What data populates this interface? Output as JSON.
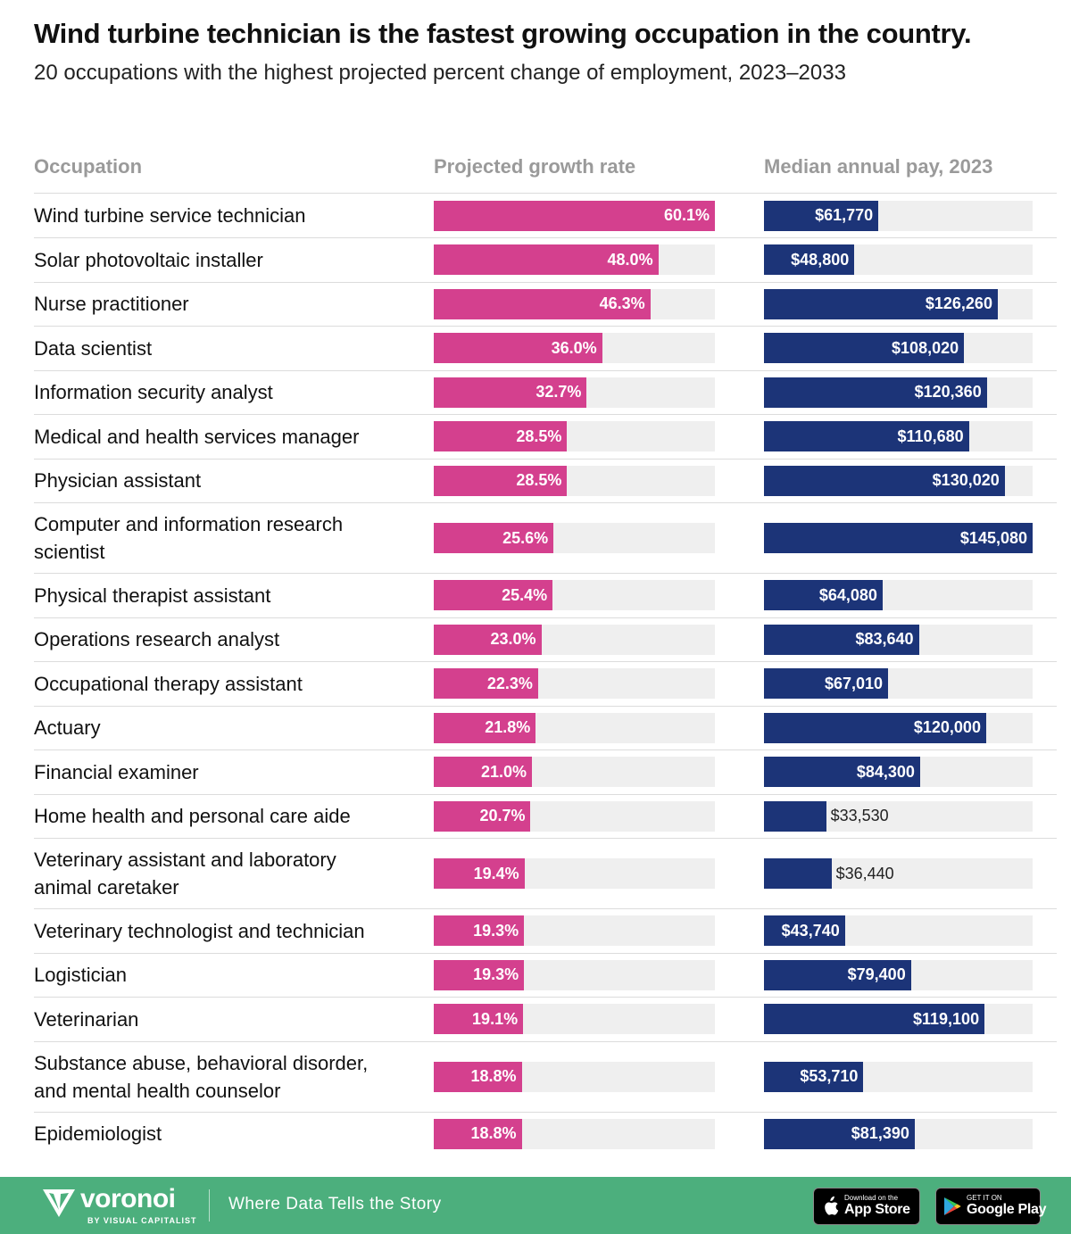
{
  "title": "Wind turbine technician is the fastest growing occupation in the country.",
  "subtitle": "20 occupations with the highest projected percent change of employment, 2023–2033",
  "headers": {
    "occupation": "Occupation",
    "growth": "Projected growth rate",
    "pay": "Median annual pay, 2023"
  },
  "colors": {
    "growth_bar": "#d4408e",
    "pay_bar": "#1c3478",
    "track": "#efefef",
    "footer": "#4caf7d"
  },
  "chart_data": [
    {
      "type": "bar",
      "orientation": "horizontal",
      "title": "Projected growth rate",
      "unit": "%",
      "xlim": [
        0,
        60.1
      ],
      "categories": [
        "Wind turbine service technician",
        "Solar photovoltaic installer",
        "Nurse practitioner",
        "Data scientist",
        "Information security analyst",
        "Medical and health services manager",
        "Physician assistant",
        "Computer and information research scientist",
        "Physical therapist assistant",
        "Operations research analyst",
        "Occupational therapy assistant",
        "Actuary",
        "Financial examiner",
        "Home health and personal care aide",
        "Veterinary assistant and laboratory animal caretaker",
        "Veterinary technologist and technician",
        "Logistician",
        "Veterinarian",
        "Substance abuse, behavioral disorder, and mental health counselor",
        "Epidemiologist"
      ],
      "values": [
        60.1,
        48.0,
        46.3,
        36.0,
        32.7,
        28.5,
        28.5,
        25.6,
        25.4,
        23.0,
        22.3,
        21.8,
        21.0,
        20.7,
        19.4,
        19.3,
        19.3,
        19.1,
        18.8,
        18.8
      ],
      "labels": [
        "60.1%",
        "48.0%",
        "46.3%",
        "36.0%",
        "32.7%",
        "28.5%",
        "28.5%",
        "25.6%",
        "25.4%",
        "23.0%",
        "22.3%",
        "21.8%",
        "21.0%",
        "20.7%",
        "19.4%",
        "19.3%",
        "19.3%",
        "19.1%",
        "18.8%",
        "18.8%"
      ]
    },
    {
      "type": "bar",
      "orientation": "horizontal",
      "title": "Median annual pay, 2023",
      "unit": "$",
      "xlim": [
        0,
        145080
      ],
      "categories": [
        "Wind turbine service technician",
        "Solar photovoltaic installer",
        "Nurse practitioner",
        "Data scientist",
        "Information security analyst",
        "Medical and health services manager",
        "Physician assistant",
        "Computer and information research scientist",
        "Physical therapist assistant",
        "Operations research analyst",
        "Occupational therapy assistant",
        "Actuary",
        "Financial examiner",
        "Home health and personal care aide",
        "Veterinary assistant and laboratory animal caretaker",
        "Veterinary technologist and technician",
        "Logistician",
        "Veterinarian",
        "Substance abuse, behavioral disorder, and mental health counselor",
        "Epidemiologist"
      ],
      "values": [
        61770,
        48800,
        126260,
        108020,
        120360,
        110680,
        130020,
        145080,
        64080,
        83640,
        67010,
        120000,
        84300,
        33530,
        36440,
        43740,
        79400,
        119100,
        53710,
        81390
      ],
      "labels": [
        "$61,770",
        "$48,800",
        "$126,260",
        "$108,020",
        "$120,360",
        "$110,680",
        "$130,020",
        "$145,080",
        "$64,080",
        "$83,640",
        "$67,010",
        "$120,000",
        "$84,300",
        "$33,530",
        "$36,440",
        "$43,740",
        "$79,400",
        "$119,100",
        "$53,710",
        "$81,390"
      ]
    }
  ],
  "occupation_lines": [
    [
      "Wind turbine service technician"
    ],
    [
      "Solar photovoltaic installer"
    ],
    [
      "Nurse practitioner"
    ],
    [
      "Data scientist"
    ],
    [
      "Information security analyst"
    ],
    [
      "Medical and health services manager"
    ],
    [
      "Physician assistant"
    ],
    [
      "Computer and information research",
      "scientist"
    ],
    [
      "Physical therapist assistant"
    ],
    [
      "Operations research analyst"
    ],
    [
      "Occupational therapy assistant"
    ],
    [
      "Actuary"
    ],
    [
      "Financial examiner"
    ],
    [
      "Home health and personal care aide"
    ],
    [
      "Veterinary assistant and laboratory",
      "animal caretaker"
    ],
    [
      "Veterinary technologist and technician"
    ],
    [
      "Logistician"
    ],
    [
      "Veterinarian"
    ],
    [
      "Substance abuse, behavioral disorder,",
      "and mental health counselor"
    ],
    [
      "Epidemiologist"
    ]
  ],
  "footer": {
    "brand": "voronoi",
    "brand_sub": "BY VISUAL CAPITALIST",
    "tagline": "Where Data Tells the Story",
    "app_store_small": "Download on the",
    "app_store_big": "App Store",
    "google_play_small": "GET IT ON",
    "google_play_big": "Google Play"
  }
}
